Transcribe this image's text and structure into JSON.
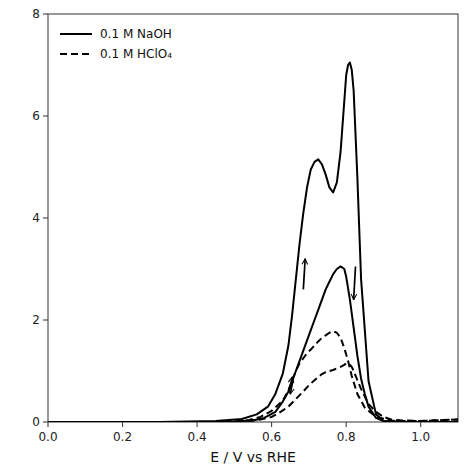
{
  "chart_data": {
    "type": "line",
    "x_label": "E / V vs RHE",
    "xlim": [
      0.0,
      1.1
    ],
    "ylim": [
      0.0,
      8.0
    ],
    "xticks": [
      {
        "value": 0.0,
        "label": "0.0"
      },
      0.2,
      0.4,
      0.6,
      0.8,
      {
        "value": 1.0,
        "label": "1.0"
      }
    ],
    "yticks": [
      0,
      2,
      4,
      6,
      8
    ],
    "legend": "upper-left",
    "series": [
      {
        "name": "0.1 M NaOH",
        "color": "black",
        "line_style": "solid",
        "x": [
          0.0,
          0.3,
          0.45,
          0.52,
          0.56,
          0.59,
          0.61,
          0.63,
          0.645,
          0.655,
          0.665,
          0.675,
          0.685,
          0.695,
          0.705,
          0.715,
          0.725,
          0.735,
          0.745,
          0.755,
          0.765,
          0.775,
          0.785,
          0.795,
          0.8,
          0.805,
          0.81,
          0.815,
          0.82,
          0.83,
          0.84,
          0.86,
          0.88,
          0.9,
          0.95,
          1.0,
          1.1
        ],
        "values": [
          0.0,
          0.0,
          0.02,
          0.06,
          0.15,
          0.3,
          0.55,
          0.95,
          1.5,
          2.1,
          2.8,
          3.5,
          4.1,
          4.6,
          4.95,
          5.1,
          5.15,
          5.05,
          4.85,
          4.6,
          4.5,
          4.7,
          5.3,
          6.3,
          6.8,
          7.0,
          7.05,
          6.9,
          6.5,
          4.8,
          2.8,
          0.8,
          0.15,
          0.02,
          0.0,
          0.0,
          0.0
        ]
      },
      {
        "color": "black",
        "line_style": "solid",
        "x": [
          1.1,
          0.95,
          0.9,
          0.88,
          0.86,
          0.85,
          0.84,
          0.83,
          0.82,
          0.81,
          0.8,
          0.795,
          0.785,
          0.775,
          0.765,
          0.755,
          0.745,
          0.735,
          0.725,
          0.715,
          0.705,
          0.695,
          0.685,
          0.675,
          0.665,
          0.655,
          0.645,
          0.63,
          0.61,
          0.58,
          0.55,
          0.5,
          0.45,
          0.3,
          0.1,
          0.0
        ],
        "values": [
          0.0,
          0.0,
          0.02,
          0.08,
          0.3,
          0.55,
          0.85,
          1.3,
          1.85,
          2.4,
          2.85,
          3.0,
          3.05,
          3.0,
          2.9,
          2.75,
          2.6,
          2.4,
          2.2,
          2.0,
          1.8,
          1.6,
          1.4,
          1.2,
          1.0,
          0.8,
          0.6,
          0.4,
          0.2,
          0.08,
          0.03,
          0.01,
          0.0,
          0.0,
          0.0,
          0.0
        ]
      },
      {
        "name": "0.1 M HClO₄",
        "color": "black",
        "line_style": "dashed",
        "x": [
          0.0,
          0.35,
          0.45,
          0.5,
          0.54,
          0.57,
          0.6,
          0.63,
          0.645,
          0.655,
          0.665,
          0.675,
          0.685,
          0.695,
          0.705,
          0.715,
          0.725,
          0.735,
          0.745,
          0.755,
          0.765,
          0.775,
          0.785,
          0.795,
          0.805,
          0.815,
          0.83,
          0.85,
          0.88,
          0.92,
          0.95,
          1.0,
          1.1
        ],
        "values": [
          0.0,
          0.0,
          0.0,
          0.01,
          0.04,
          0.1,
          0.22,
          0.42,
          0.62,
          0.82,
          1.0,
          1.15,
          1.25,
          1.35,
          1.42,
          1.5,
          1.58,
          1.65,
          1.7,
          1.75,
          1.78,
          1.75,
          1.65,
          1.45,
          1.2,
          0.9,
          0.55,
          0.28,
          0.1,
          0.03,
          0.02,
          0.02,
          0.05
        ]
      },
      {
        "color": "black",
        "line_style": "dashed",
        "x": [
          1.1,
          1.0,
          0.95,
          0.92,
          0.9,
          0.88,
          0.86,
          0.85,
          0.84,
          0.83,
          0.82,
          0.815,
          0.81,
          0.805,
          0.8,
          0.795,
          0.785,
          0.775,
          0.765,
          0.755,
          0.745,
          0.735,
          0.725,
          0.715,
          0.7,
          0.685,
          0.665,
          0.645,
          0.62,
          0.6,
          0.57,
          0.54,
          0.5,
          0.45,
          0.35,
          0.2,
          0.0
        ],
        "values": [
          0.05,
          0.02,
          0.03,
          0.05,
          0.1,
          0.2,
          0.35,
          0.5,
          0.65,
          0.82,
          1.0,
          1.08,
          1.12,
          1.15,
          1.15,
          1.12,
          1.08,
          1.05,
          1.02,
          1.0,
          0.98,
          0.94,
          0.88,
          0.82,
          0.72,
          0.6,
          0.45,
          0.3,
          0.18,
          0.1,
          0.05,
          0.02,
          0.0,
          0.0,
          0.0,
          0.0,
          0.0
        ]
      }
    ],
    "arrows": [
      {
        "x_from": 0.685,
        "y_from": 2.6,
        "x": 0.69,
        "y": 3.2,
        "color": "black"
      },
      {
        "x_from": 0.825,
        "y_from": 3.05,
        "x": 0.82,
        "y": 2.4,
        "color": "black"
      },
      {
        "x_from": 0.648,
        "y_from": 0.62,
        "x": 0.655,
        "y": 0.88,
        "color": "black"
      },
      {
        "x_from": 0.658,
        "y_from": 0.85,
        "x": 0.65,
        "y": 0.55,
        "color": "black"
      }
    ]
  }
}
